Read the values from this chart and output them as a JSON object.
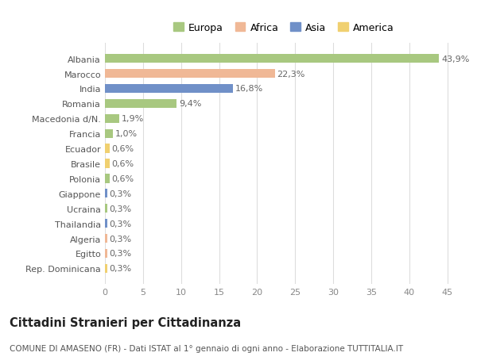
{
  "countries": [
    "Albania",
    "Marocco",
    "India",
    "Romania",
    "Macedonia d/N.",
    "Francia",
    "Ecuador",
    "Brasile",
    "Polonia",
    "Giappone",
    "Ucraina",
    "Thailandia",
    "Algeria",
    "Egitto",
    "Rep. Dominicana"
  ],
  "values": [
    43.9,
    22.3,
    16.8,
    9.4,
    1.9,
    1.0,
    0.6,
    0.6,
    0.6,
    0.3,
    0.3,
    0.3,
    0.3,
    0.3,
    0.3
  ],
  "labels": [
    "43,9%",
    "22,3%",
    "16,8%",
    "9,4%",
    "1,9%",
    "1,0%",
    "0,6%",
    "0,6%",
    "0,6%",
    "0,3%",
    "0,3%",
    "0,3%",
    "0,3%",
    "0,3%",
    "0,3%"
  ],
  "continents": [
    "Europa",
    "Africa",
    "Asia",
    "Europa",
    "Europa",
    "Europa",
    "America",
    "America",
    "Europa",
    "Asia",
    "Europa",
    "Asia",
    "Africa",
    "Africa",
    "America"
  ],
  "colors": {
    "Europa": "#a8c880",
    "Africa": "#f0b896",
    "Asia": "#7090c8",
    "America": "#f0d070"
  },
  "legend_order": [
    "Europa",
    "Africa",
    "Asia",
    "America"
  ],
  "legend_colors": [
    "#a8c880",
    "#f0b896",
    "#7090c8",
    "#f0d070"
  ],
  "title": "Cittadini Stranieri per Cittadinanza",
  "subtitle": "COMUNE DI AMASENO (FR) - Dati ISTAT al 1° gennaio di ogni anno - Elaborazione TUTTITALIA.IT",
  "xlim": [
    0,
    47
  ],
  "xticks": [
    0,
    5,
    10,
    15,
    20,
    25,
    30,
    35,
    40,
    45
  ],
  "bg_color": "#ffffff",
  "bar_height": 0.6,
  "grid_color": "#dddddd",
  "label_fontsize": 8,
  "tick_fontsize": 8,
  "title_fontsize": 10.5,
  "subtitle_fontsize": 7.5
}
